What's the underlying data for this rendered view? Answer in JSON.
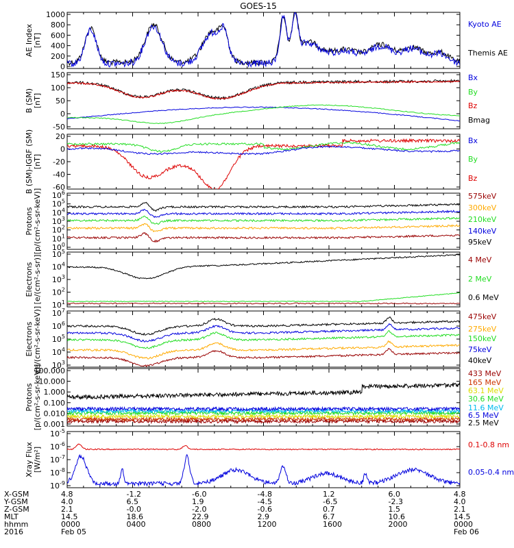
{
  "title": "GOES-15",
  "colors": {
    "black": "#000000",
    "blue": "#0000dd",
    "green": "#22dd22",
    "red": "#dd0000",
    "orange": "#ffaa00",
    "darkred": "#990000",
    "cyan": "#00bbee",
    "yellow": "#dddd00",
    "brownred": "#cc3300",
    "orangered": "#ee5500"
  },
  "chart_data": [
    {
      "type": "line",
      "id": "ae",
      "ylabel": "AE Index\n[nT]",
      "yticks": [
        "1000",
        "800",
        "600",
        "400",
        "200",
        "0"
      ],
      "ylim": [
        0,
        1000
      ],
      "series": [
        {
          "name": "Kyoto AE",
          "color": "#0000dd"
        },
        {
          "name": "Themis AE",
          "color": "#000000"
        }
      ]
    },
    {
      "type": "line",
      "id": "bsm",
      "ylabel": "B (SM)\n[nT]",
      "yticks": [
        "150",
        "100",
        "50",
        "0",
        "-50"
      ],
      "ylim": [
        -60,
        150
      ],
      "series": [
        {
          "name": "Bx",
          "color": "#0000dd"
        },
        {
          "name": "By",
          "color": "#22dd22"
        },
        {
          "name": "Bz",
          "color": "#dd0000"
        },
        {
          "name": "Bmag",
          "color": "#000000"
        }
      ]
    },
    {
      "type": "line",
      "id": "digrf",
      "ylabel": "B (SM)-IGRF (SM)\n[nT]",
      "yticks": [
        "20",
        "0",
        "-20",
        "-40",
        "-60"
      ],
      "ylim": [
        -65,
        22
      ],
      "series": [
        {
          "name": "Bx",
          "color": "#0000dd"
        },
        {
          "name": "By",
          "color": "#22dd22"
        },
        {
          "name": "Bz",
          "color": "#dd0000"
        }
      ]
    },
    {
      "type": "line",
      "id": "protons_low",
      "log": true,
      "ylabel": "Protons\n[p/(cm²-s-sr-keV)]",
      "ytick_exp": [
        6,
        5,
        4,
        3,
        2,
        1,
        0
      ],
      "series": [
        {
          "name": "575keV",
          "color": "#990000"
        },
        {
          "name": "300keV",
          "color": "#ffaa00"
        },
        {
          "name": "210keV",
          "color": "#22dd22"
        },
        {
          "name": "140keV",
          "color": "#0000dd"
        },
        {
          "name": "95keV",
          "color": "#000000"
        }
      ]
    },
    {
      "type": "line",
      "id": "electrons_high",
      "log": true,
      "ylabel": "Electrons\n[e/(cm²-s-sr)]",
      "ytick_exp": [
        5,
        4,
        3,
        2,
        1
      ],
      "series": [
        {
          "name": "4 MeV",
          "color": "#990000"
        },
        {
          "name": "2 MeV",
          "color": "#22dd22"
        },
        {
          "name": "0.6 MeV",
          "color": "#000000"
        }
      ]
    },
    {
      "type": "line",
      "id": "electrons_low",
      "log": true,
      "ylabel": "Electrons\n[e/(cm²-s-sr-keV)]",
      "ytick_exp": [
        7,
        6,
        5,
        4,
        3
      ],
      "series": [
        {
          "name": "475keV",
          "color": "#990000"
        },
        {
          "name": "275keV",
          "color": "#ffaa00"
        },
        {
          "name": "150keV",
          "color": "#22dd22"
        },
        {
          "name": "75keV",
          "color": "#0000dd"
        },
        {
          "name": "40keV",
          "color": "#000000"
        }
      ]
    },
    {
      "type": "line",
      "id": "protons_high",
      "log": true,
      "ylabel": "Protons\n[p/(cm²-s-sr-keV)]",
      "yticks": [
        "100.000",
        "10.000",
        "1.000",
        "0.100",
        "0.010",
        "0.001"
      ],
      "series": [
        {
          "name": "433 MeV",
          "color": "#990000"
        },
        {
          "name": "165 MeV",
          "color": "#cc3300"
        },
        {
          "name": "63.1 MeV",
          "color": "#dddd00"
        },
        {
          "name": "30.6 MeV",
          "color": "#22dd22"
        },
        {
          "name": "11.6 MeV",
          "color": "#00bbee"
        },
        {
          "name": "6.5 MeV",
          "color": "#0000dd"
        },
        {
          "name": "2.5 MeV",
          "color": "#000000"
        }
      ]
    },
    {
      "type": "line",
      "id": "xray",
      "log": true,
      "ylabel": "Xray Flux\n[W/m²]",
      "ytick_exp": [
        -5,
        -6,
        -7,
        -8,
        -9
      ],
      "series": [
        {
          "name": "0.1-0.8 nm",
          "color": "#dd0000"
        },
        {
          "name": "0.05-0.4 nm",
          "color": "#0000dd"
        }
      ]
    }
  ],
  "footer": {
    "rows": [
      {
        "label": "X-GSM",
        "values": [
          "4.8",
          "-1.2",
          "-6.0",
          "-4.8",
          "1.2",
          "6.0",
          "4.8"
        ]
      },
      {
        "label": "Y-GSM",
        "values": [
          "4.0",
          "6.5",
          "1.9",
          "-4.5",
          "-6.5",
          "-2.3",
          "4.0"
        ]
      },
      {
        "label": "Z-GSM",
        "values": [
          "2.1",
          "-0.0",
          "-2.0",
          "-0.6",
          "0.7",
          "1.5",
          "2.1"
        ]
      },
      {
        "label": "MLT",
        "values": [
          "14.5",
          "18.6",
          "22.9",
          "2.9",
          "6.7",
          "10.6",
          "14.5"
        ]
      },
      {
        "label": "hhmm",
        "values": [
          "0000",
          "0400",
          "0800",
          "1200",
          "1600",
          "2000",
          "0000"
        ]
      },
      {
        "label": "2016",
        "values": [
          "Feb 05",
          "",
          "",
          "",
          "",
          "",
          "Feb 06"
        ]
      }
    ]
  }
}
